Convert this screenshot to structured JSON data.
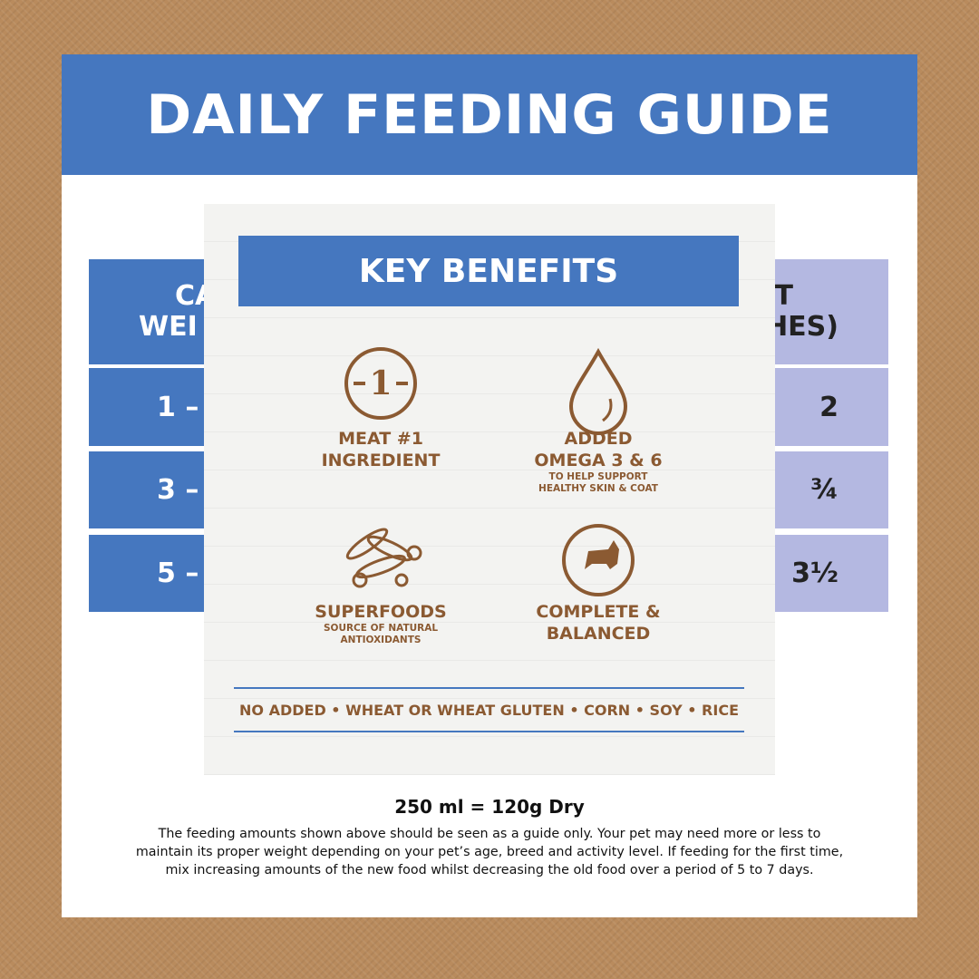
{
  "header": {
    "title": "DAILY FEEDING GUIDE"
  },
  "table": {
    "header_left": [
      "CA",
      "WEI"
    ],
    "header_right": [
      "T",
      "HES)"
    ],
    "rows_left": [
      "1 –",
      "3 –",
      "5 –"
    ],
    "rows_right": [
      "2",
      "¾",
      "3½"
    ]
  },
  "benefits": {
    "title": "KEY BENEFITS",
    "items": [
      {
        "icon_text": "1",
        "lines": [
          "MEAT #1",
          "INGREDIENT"
        ],
        "sub": []
      },
      {
        "icon_text": null,
        "lines": [
          "ADDED",
          "OMEGA 3 & 6"
        ],
        "sub": [
          "TO HELP SUPPORT",
          "HEALTHY SKIN & COAT"
        ]
      },
      {
        "icon_text": null,
        "lines": [
          "SUPERFOODS"
        ],
        "sub": [
          "SOURCE OF NATURAL",
          "ANTIOXIDANTS"
        ]
      },
      {
        "icon_text": null,
        "lines": [
          "COMPLETE &",
          "BALANCED"
        ],
        "sub": []
      }
    ],
    "footer": "NO ADDED • WHEAT OR WHEAT GLUTEN • CORN • SOY • RICE"
  },
  "footer": {
    "measure": "250 ml = 120g Dry",
    "note": [
      "The feeding amounts shown above should be seen as a guide only. Your pet may need more or less to",
      "maintain its proper weight depending on your pet’s age, breed and activity level. If feeding for the first time,",
      "mix increasing amounts of the new food whilst decreasing the old food over a period of 5 to 7 days."
    ]
  }
}
